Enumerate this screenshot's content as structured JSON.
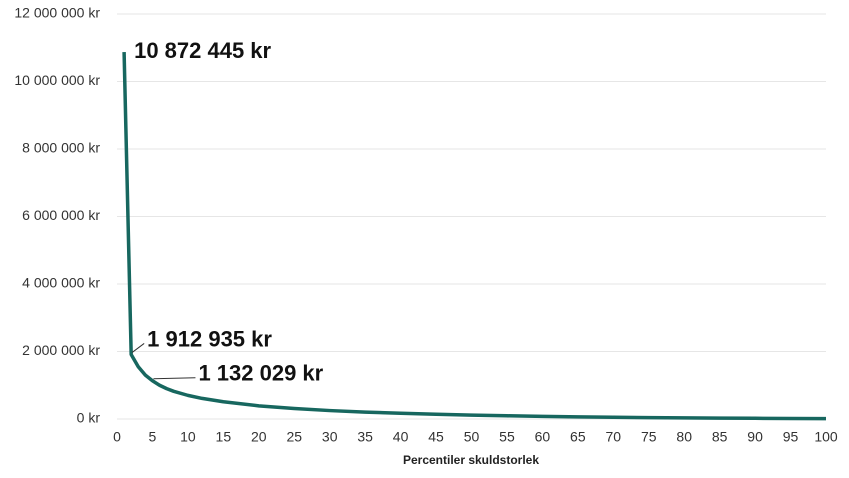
{
  "chart_data": {
    "type": "line",
    "x_label": "Percentiler skuldstorlek",
    "x": [
      1,
      2,
      3,
      4,
      5,
      6,
      7,
      8,
      10,
      12,
      15,
      20,
      25,
      30,
      35,
      40,
      45,
      50,
      55,
      60,
      65,
      70,
      75,
      80,
      85,
      90,
      95,
      100
    ],
    "values": [
      10872445,
      1912935,
      1550000,
      1300000,
      1132029,
      1000000,
      900000,
      820000,
      700000,
      610000,
      510000,
      390000,
      310000,
      250000,
      205000,
      170000,
      140000,
      115000,
      95000,
      78000,
      64000,
      52000,
      42000,
      34000,
      27000,
      21000,
      16000,
      11000
    ],
    "value_labels": [
      "10 872 445 kr",
      "1 912 935 kr",
      null,
      null,
      "1 132 029 kr",
      null,
      null,
      null,
      null,
      null,
      null,
      null,
      null,
      null,
      null,
      null,
      null,
      null,
      null,
      null,
      null,
      null,
      null,
      null,
      null,
      null,
      null,
      null
    ],
    "color": "#17675f",
    "xlim": [
      0,
      100
    ],
    "xticks": [
      0,
      5,
      10,
      15,
      20,
      25,
      30,
      35,
      40,
      45,
      50,
      55,
      60,
      65,
      70,
      75,
      80,
      85,
      90,
      95,
      100
    ],
    "ylim": [
      0,
      12000000
    ],
    "yticks": [
      {
        "value": 0,
        "label": "0 kr"
      },
      {
        "value": 2000000,
        "label": "2 000 000 kr"
      },
      {
        "value": 4000000,
        "label": "4 000 000 kr"
      },
      {
        "value": 6000000,
        "label": "6 000 000 kr"
      },
      {
        "value": 8000000,
        "label": "8 000 000 kr"
      },
      {
        "value": 10000000,
        "label": "10 000 000 kr"
      },
      {
        "value": 12000000,
        "label": "12 000 000 kr"
      }
    ],
    "grid": true
  }
}
